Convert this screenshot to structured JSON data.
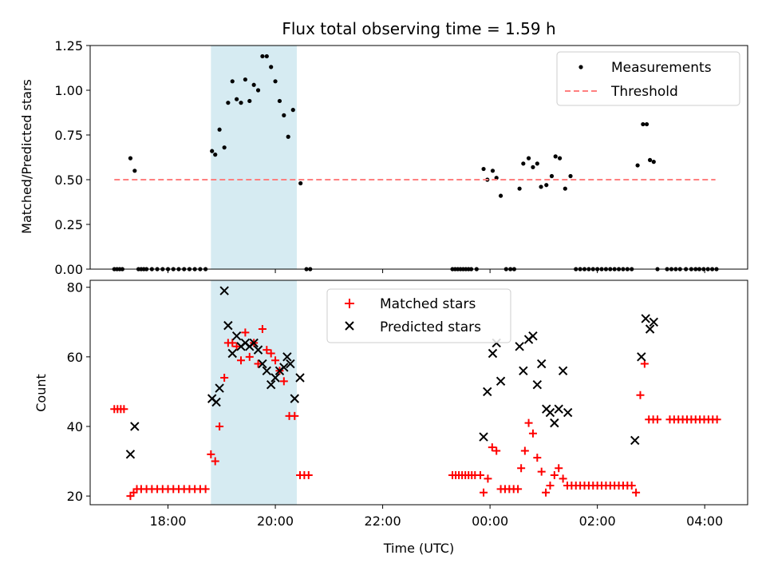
{
  "chart_data": [
    {
      "type": "scatter",
      "title": "Flux total observing time = 1.59 h",
      "ylabel": "Matched/Predicted stars",
      "xlim_hours": [
        16.55,
        28.8
      ],
      "ylim": [
        0,
        1.25
      ],
      "yticks": [
        "0.00",
        "0.25",
        "0.50",
        "0.75",
        "1.00",
        "1.25"
      ],
      "highlight_span_hours": [
        18.8,
        20.4
      ],
      "threshold": 0.5,
      "threshold_x_hours": [
        17.0,
        28.2
      ],
      "legend_position": "upper right",
      "series": [
        {
          "name": "Measurements",
          "points": [
            [
              17.0,
              0
            ],
            [
              17.05,
              0
            ],
            [
              17.1,
              0
            ],
            [
              17.15,
              0
            ],
            [
              17.3,
              0.62
            ],
            [
              17.38,
              0.55
            ],
            [
              17.45,
              0
            ],
            [
              17.5,
              0
            ],
            [
              17.55,
              0
            ],
            [
              17.6,
              0
            ],
            [
              17.7,
              0
            ],
            [
              17.8,
              0
            ],
            [
              17.9,
              0
            ],
            [
              18.0,
              0
            ],
            [
              18.1,
              0
            ],
            [
              18.2,
              0
            ],
            [
              18.3,
              0
            ],
            [
              18.4,
              0
            ],
            [
              18.5,
              0
            ],
            [
              18.6,
              0
            ],
            [
              18.7,
              0
            ],
            [
              18.82,
              0.66
            ],
            [
              18.88,
              0.64
            ],
            [
              18.96,
              0.78
            ],
            [
              19.05,
              0.68
            ],
            [
              19.12,
              0.93
            ],
            [
              19.2,
              1.05
            ],
            [
              19.28,
              0.95
            ],
            [
              19.36,
              0.93
            ],
            [
              19.44,
              1.06
            ],
            [
              19.52,
              0.94
            ],
            [
              19.6,
              1.03
            ],
            [
              19.68,
              1.0
            ],
            [
              19.76,
              1.19
            ],
            [
              19.84,
              1.19
            ],
            [
              19.92,
              1.13
            ],
            [
              20.0,
              1.05
            ],
            [
              20.08,
              0.94
            ],
            [
              20.16,
              0.86
            ],
            [
              20.24,
              0.74
            ],
            [
              20.33,
              0.89
            ],
            [
              20.47,
              0.48
            ],
            [
              20.58,
              0
            ],
            [
              20.65,
              0
            ],
            [
              23.3,
              0
            ],
            [
              23.35,
              0
            ],
            [
              23.4,
              0
            ],
            [
              23.45,
              0
            ],
            [
              23.5,
              0
            ],
            [
              23.55,
              0
            ],
            [
              23.6,
              0
            ],
            [
              23.65,
              0
            ],
            [
              23.75,
              0
            ],
            [
              23.88,
              0.56
            ],
            [
              23.95,
              0.5
            ],
            [
              24.05,
              0.55
            ],
            [
              24.12,
              0.51
            ],
            [
              24.2,
              0.41
            ],
            [
              24.3,
              0
            ],
            [
              24.38,
              0
            ],
            [
              24.45,
              0
            ],
            [
              24.55,
              0.45
            ],
            [
              24.62,
              0.59
            ],
            [
              24.72,
              0.62
            ],
            [
              24.8,
              0.57
            ],
            [
              24.88,
              0.59
            ],
            [
              24.95,
              0.46
            ],
            [
              25.05,
              0.47
            ],
            [
              25.15,
              0.52
            ],
            [
              25.22,
              0.63
            ],
            [
              25.3,
              0.62
            ],
            [
              25.4,
              0.45
            ],
            [
              25.5,
              0.52
            ],
            [
              25.6,
              0
            ],
            [
              25.68,
              0
            ],
            [
              25.76,
              0
            ],
            [
              25.84,
              0
            ],
            [
              25.92,
              0
            ],
            [
              26.0,
              0
            ],
            [
              26.08,
              0
            ],
            [
              26.16,
              0
            ],
            [
              26.24,
              0
            ],
            [
              26.32,
              0
            ],
            [
              26.4,
              0
            ],
            [
              26.48,
              0
            ],
            [
              26.56,
              0
            ],
            [
              26.64,
              0
            ],
            [
              26.75,
              0.58
            ],
            [
              26.85,
              0.81
            ],
            [
              26.92,
              0.81
            ],
            [
              26.98,
              0.61
            ],
            [
              27.05,
              0.6
            ],
            [
              27.12,
              0
            ],
            [
              27.3,
              0
            ],
            [
              27.38,
              0
            ],
            [
              27.46,
              0
            ],
            [
              27.54,
              0
            ],
            [
              27.65,
              0
            ],
            [
              27.75,
              0
            ],
            [
              27.83,
              0
            ],
            [
              27.9,
              0
            ],
            [
              27.98,
              0
            ],
            [
              28.06,
              0
            ],
            [
              28.14,
              0
            ],
            [
              28.22,
              0
            ]
          ]
        },
        {
          "name": "Threshold",
          "value": 0.5
        }
      ]
    },
    {
      "type": "scatter",
      "xlabel": "Time (UTC)",
      "ylabel": "Count",
      "xlim_hours": [
        16.55,
        28.8
      ],
      "ylim": [
        17.5,
        82
      ],
      "yticks": [
        "20",
        "40",
        "60",
        "80"
      ],
      "xtick_values_hours": [
        18,
        20,
        22,
        24,
        26,
        28
      ],
      "xtick_labels": [
        "18:00",
        "20:00",
        "22:00",
        "00:00",
        "02:00",
        "04:00"
      ],
      "highlight_span_hours": [
        18.8,
        20.4
      ],
      "legend_position": "upper center",
      "series": [
        {
          "name": "Matched stars",
          "points": [
            [
              17.0,
              45
            ],
            [
              17.06,
              45
            ],
            [
              17.12,
              45
            ],
            [
              17.18,
              45
            ],
            [
              17.3,
              20
            ],
            [
              17.36,
              21
            ],
            [
              17.42,
              22
            ],
            [
              17.5,
              22
            ],
            [
              17.6,
              22
            ],
            [
              17.7,
              22
            ],
            [
              17.8,
              22
            ],
            [
              17.9,
              22
            ],
            [
              18.0,
              22
            ],
            [
              18.1,
              22
            ],
            [
              18.2,
              22
            ],
            [
              18.3,
              22
            ],
            [
              18.4,
              22
            ],
            [
              18.5,
              22
            ],
            [
              18.6,
              22
            ],
            [
              18.7,
              22
            ],
            [
              18.8,
              32
            ],
            [
              18.88,
              30
            ],
            [
              18.96,
              40
            ],
            [
              19.05,
              54
            ],
            [
              19.12,
              64
            ],
            [
              19.2,
              64
            ],
            [
              19.28,
              63
            ],
            [
              19.36,
              59
            ],
            [
              19.44,
              67
            ],
            [
              19.52,
              60
            ],
            [
              19.6,
              64
            ],
            [
              19.68,
              58
            ],
            [
              19.76,
              68
            ],
            [
              19.84,
              62
            ],
            [
              19.92,
              61
            ],
            [
              20.0,
              59
            ],
            [
              20.08,
              56
            ],
            [
              20.16,
              53
            ],
            [
              20.26,
              43
            ],
            [
              20.36,
              43
            ],
            [
              20.46,
              26
            ],
            [
              20.54,
              26
            ],
            [
              20.62,
              26
            ],
            [
              23.3,
              26
            ],
            [
              23.36,
              26
            ],
            [
              23.42,
              26
            ],
            [
              23.48,
              26
            ],
            [
              23.54,
              26
            ],
            [
              23.6,
              26
            ],
            [
              23.66,
              26
            ],
            [
              23.72,
              26
            ],
            [
              23.82,
              26
            ],
            [
              23.88,
              21
            ],
            [
              23.96,
              25
            ],
            [
              24.04,
              34
            ],
            [
              24.12,
              33
            ],
            [
              24.2,
              22
            ],
            [
              24.28,
              22
            ],
            [
              24.36,
              22
            ],
            [
              24.44,
              22
            ],
            [
              24.52,
              22
            ],
            [
              24.58,
              28
            ],
            [
              24.65,
              33
            ],
            [
              24.72,
              41
            ],
            [
              24.8,
              38
            ],
            [
              24.88,
              31
            ],
            [
              24.96,
              27
            ],
            [
              25.04,
              21
            ],
            [
              25.12,
              23
            ],
            [
              25.2,
              26
            ],
            [
              25.28,
              28
            ],
            [
              25.36,
              25
            ],
            [
              25.44,
              23
            ],
            [
              25.52,
              23
            ],
            [
              25.6,
              23
            ],
            [
              25.68,
              23
            ],
            [
              25.76,
              23
            ],
            [
              25.84,
              23
            ],
            [
              25.92,
              23
            ],
            [
              26.0,
              23
            ],
            [
              26.08,
              23
            ],
            [
              26.16,
              23
            ],
            [
              26.24,
              23
            ],
            [
              26.32,
              23
            ],
            [
              26.4,
              23
            ],
            [
              26.48,
              23
            ],
            [
              26.56,
              23
            ],
            [
              26.64,
              23
            ],
            [
              26.72,
              21
            ],
            [
              26.8,
              49
            ],
            [
              26.88,
              58
            ],
            [
              26.96,
              42
            ],
            [
              27.04,
              42
            ],
            [
              27.12,
              42
            ],
            [
              27.35,
              42
            ],
            [
              27.43,
              42
            ],
            [
              27.51,
              42
            ],
            [
              27.59,
              42
            ],
            [
              27.67,
              42
            ],
            [
              27.75,
              42
            ],
            [
              27.83,
              42
            ],
            [
              27.91,
              42
            ],
            [
              27.99,
              42
            ],
            [
              28.07,
              42
            ],
            [
              28.15,
              42
            ],
            [
              28.23,
              42
            ]
          ]
        },
        {
          "name": "Predicted stars",
          "points": [
            [
              17.3,
              32
            ],
            [
              17.38,
              40
            ],
            [
              18.82,
              48
            ],
            [
              18.9,
              47
            ],
            [
              18.96,
              51
            ],
            [
              19.05,
              79
            ],
            [
              19.12,
              69
            ],
            [
              19.2,
              61
            ],
            [
              19.28,
              66
            ],
            [
              19.36,
              63
            ],
            [
              19.44,
              64
            ],
            [
              19.52,
              63
            ],
            [
              19.6,
              64
            ],
            [
              19.68,
              62
            ],
            [
              19.76,
              58
            ],
            [
              19.84,
              56
            ],
            [
              19.92,
              52
            ],
            [
              20.0,
              54
            ],
            [
              20.08,
              56
            ],
            [
              20.16,
              57
            ],
            [
              20.22,
              60
            ],
            [
              20.28,
              58
            ],
            [
              20.36,
              48
            ],
            [
              20.46,
              54
            ],
            [
              23.88,
              37
            ],
            [
              23.95,
              50
            ],
            [
              24.05,
              61
            ],
            [
              24.12,
              64
            ],
            [
              24.2,
              53
            ],
            [
              24.55,
              63
            ],
            [
              24.62,
              56
            ],
            [
              24.72,
              65
            ],
            [
              24.8,
              66
            ],
            [
              24.88,
              52
            ],
            [
              24.96,
              58
            ],
            [
              25.05,
              45
            ],
            [
              25.12,
              44
            ],
            [
              25.2,
              41
            ],
            [
              25.28,
              45
            ],
            [
              25.36,
              56
            ],
            [
              25.45,
              44
            ],
            [
              26.7,
              36
            ],
            [
              26.82,
              60
            ],
            [
              26.9,
              71
            ],
            [
              26.98,
              68
            ],
            [
              27.05,
              70
            ]
          ]
        }
      ]
    }
  ],
  "colors": {
    "measurements": "#000000",
    "threshold": "#ff7f7f",
    "matched": "#ff0000",
    "predicted": "#000000",
    "span": "#add8e6"
  }
}
